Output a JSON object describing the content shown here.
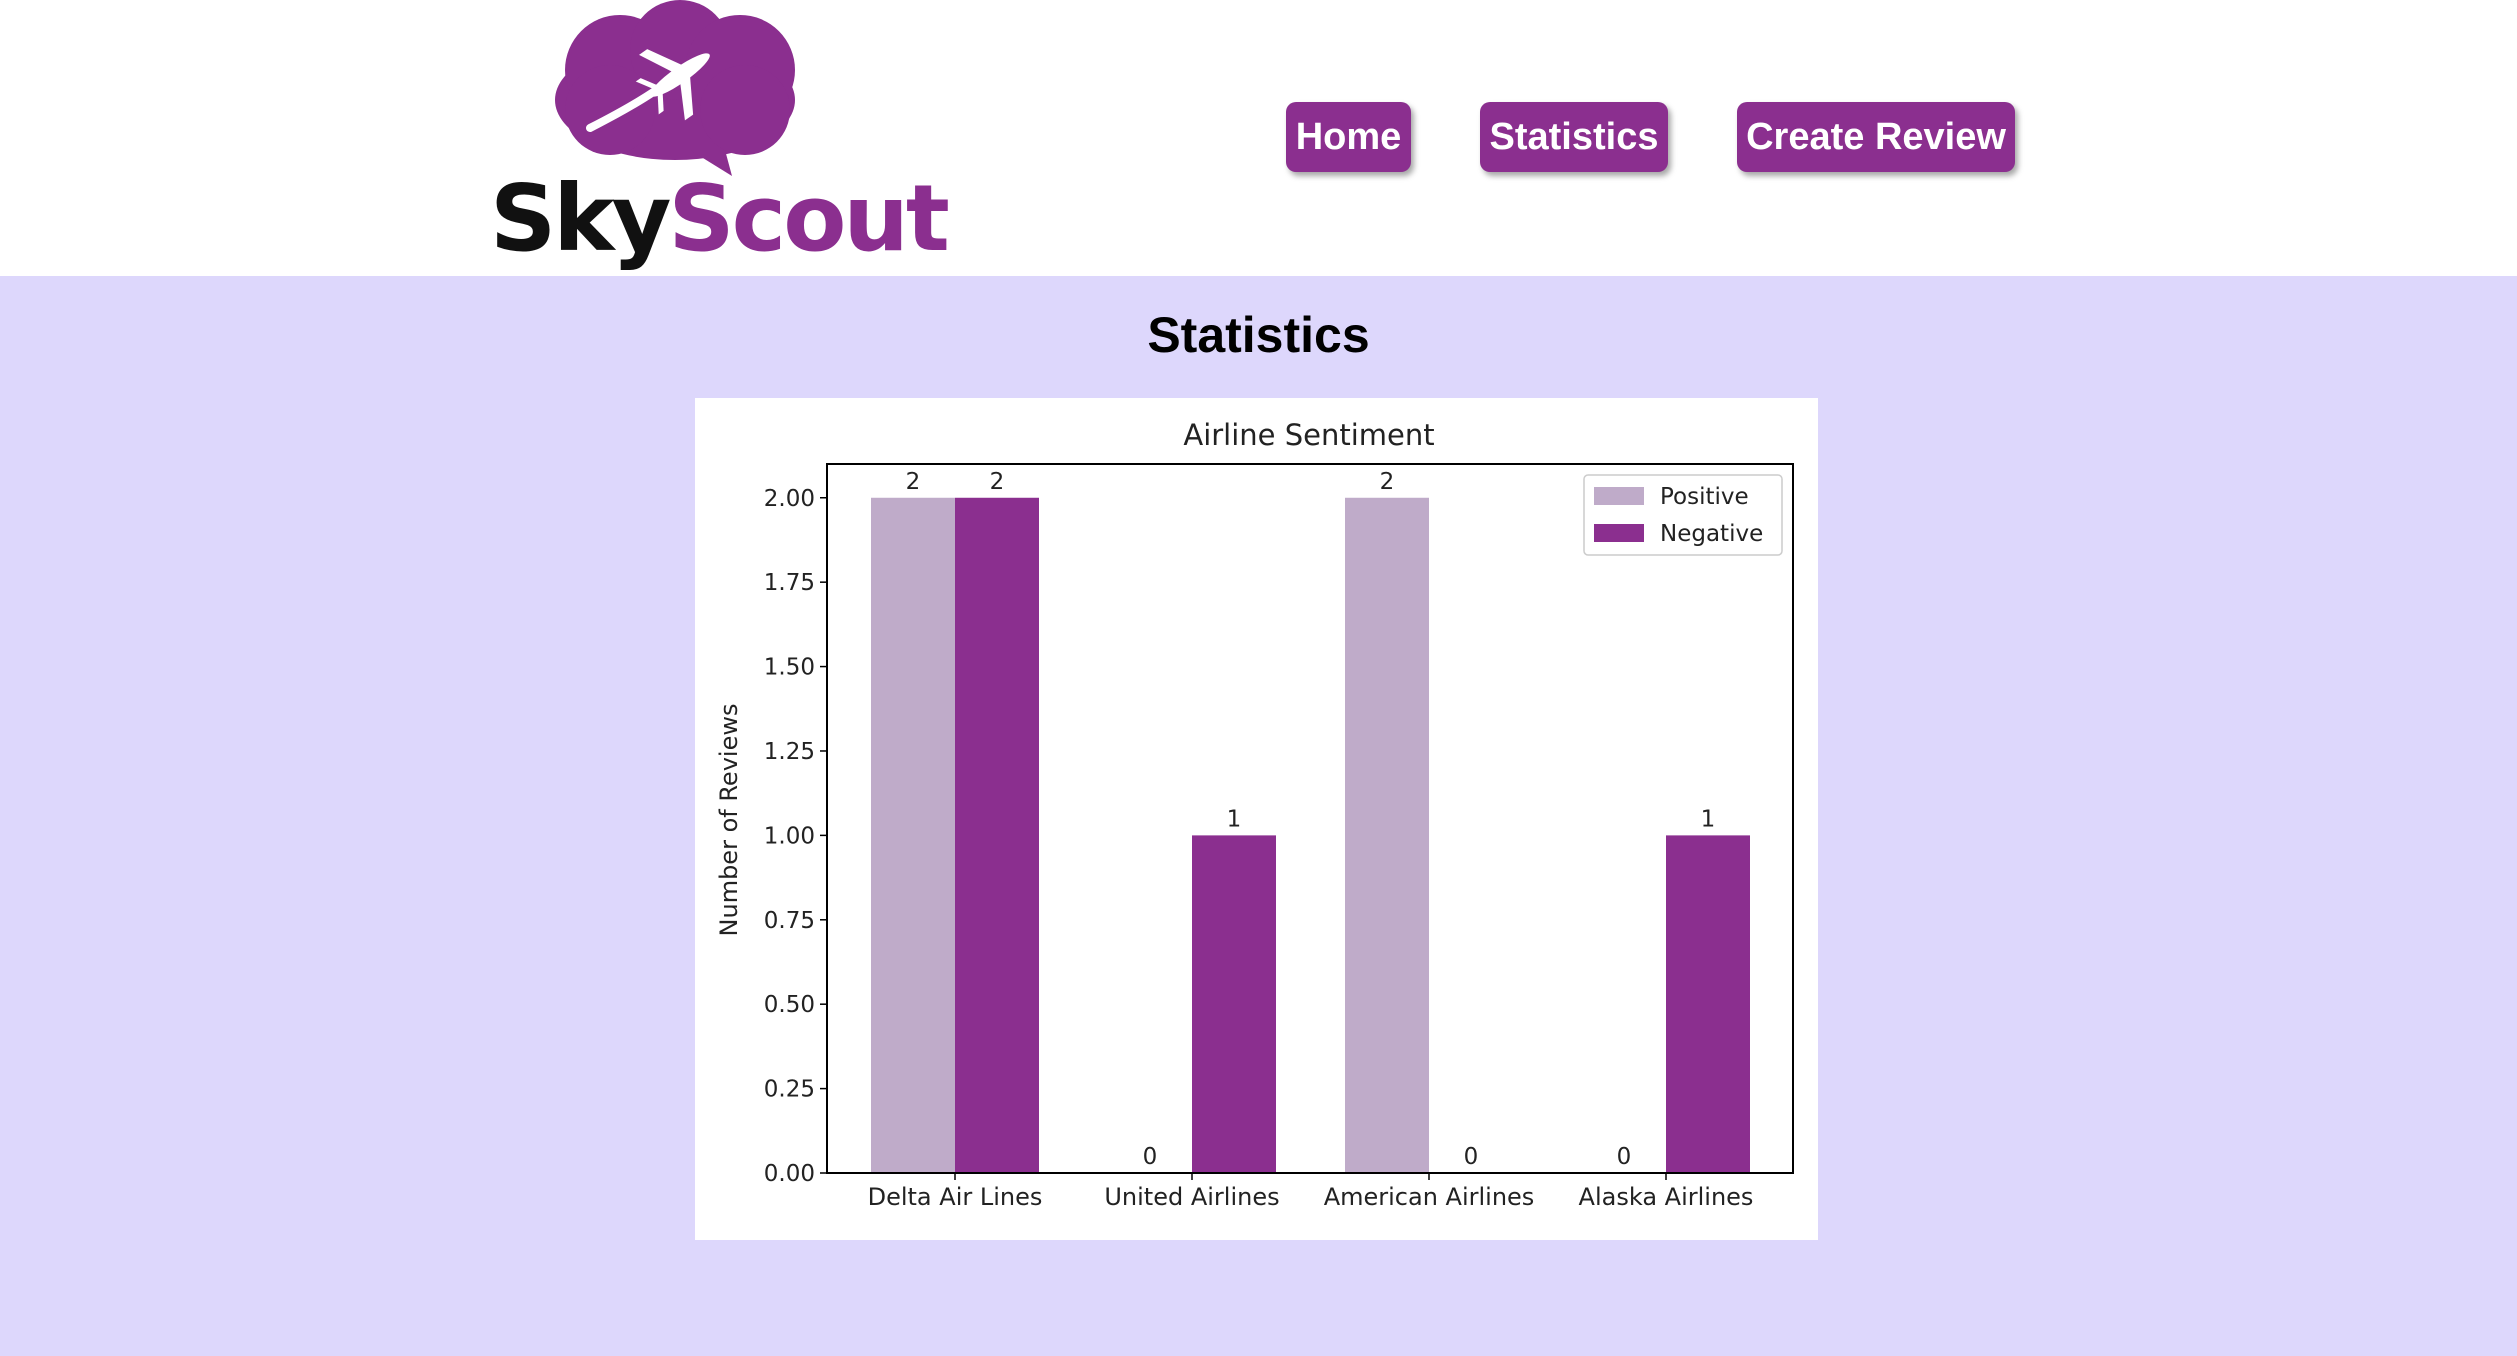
{
  "header": {
    "logo": {
      "text_part1": "Sky",
      "text_part2": "Scout",
      "icon": "airplane-cloud-icon"
    },
    "nav": [
      {
        "label": "Home"
      },
      {
        "label": "Statistics"
      },
      {
        "label": "Create Review"
      }
    ]
  },
  "main": {
    "title": "Statistics"
  },
  "colors": {
    "brand": "#8b2f8f",
    "positive": "#bfabc9",
    "negative": "#8b2f8f",
    "background": "#ddd7fc"
  },
  "chart_data": {
    "type": "bar",
    "title": "Airline Sentiment",
    "xlabel": "",
    "ylabel": "Number of Reviews",
    "categories": [
      "Delta Air Lines",
      "United Airlines",
      "American Airlines",
      "Alaska Airlines"
    ],
    "series": [
      {
        "name": "Positive",
        "values": [
          2,
          0,
          2,
          0
        ],
        "color": "#bfabc9"
      },
      {
        "name": "Negative",
        "values": [
          2,
          1,
          0,
          1
        ],
        "color": "#8b2f8f"
      }
    ],
    "ylim": [
      0,
      2.1
    ],
    "yticks": [
      "0.00",
      "0.25",
      "0.50",
      "0.75",
      "1.00",
      "1.25",
      "1.50",
      "1.75",
      "2.00"
    ],
    "legend": "top-right",
    "grid": false
  }
}
